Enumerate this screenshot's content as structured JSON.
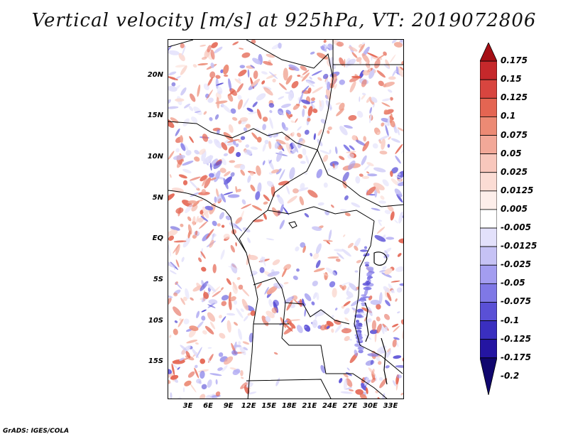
{
  "title": "Vertical velocity [m/s] at 925hPa, VT: 2019072806",
  "footer": "GrADS: IGES/COLA",
  "map": {
    "lat_labels": [
      "20N",
      "15N",
      "10N",
      "5N",
      "EQ",
      "5S",
      "10S",
      "15S"
    ],
    "lat_values": [
      20,
      15,
      10,
      5,
      0,
      -5,
      -10,
      -15
    ],
    "lon_labels": [
      "3E",
      "6E",
      "9E",
      "12E",
      "15E",
      "18E",
      "21E",
      "24E",
      "27E",
      "30E",
      "33E"
    ],
    "lon_values": [
      3,
      6,
      9,
      12,
      15,
      18,
      21,
      24,
      27,
      30,
      33
    ],
    "lon_range": [
      0,
      35
    ],
    "lat_range": [
      -19.5,
      24.5
    ]
  },
  "colorbar": {
    "levels": [
      "0.175",
      "0.15",
      "0.125",
      "0.1",
      "0.075",
      "0.05",
      "0.025",
      "0.0125",
      "0.005",
      "-0.005",
      "-0.0125",
      "-0.025",
      "-0.05",
      "-0.075",
      "-0.1",
      "-0.125",
      "-0.175",
      "-0.2"
    ],
    "colors": [
      "#a50f15",
      "#c6282b",
      "#d8453f",
      "#e46552",
      "#ec8a74",
      "#f2a898",
      "#f8c7bc",
      "#fbdcd4",
      "#fdeeea",
      "#ffffff",
      "#e3e1fb",
      "#c6c2f5",
      "#a39df0",
      "#7f78e6",
      "#5a50d6",
      "#3a2fc0",
      "#2415a2",
      "#10066e"
    ]
  }
}
